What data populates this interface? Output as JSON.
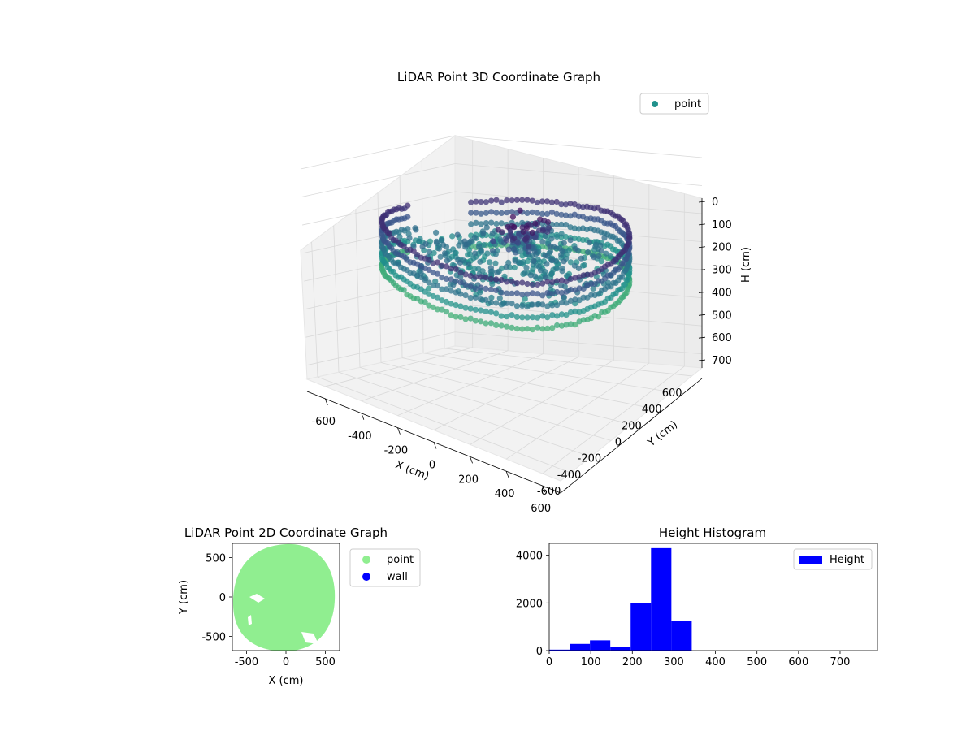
{
  "chart_data": [
    {
      "type": "scatter3d",
      "title": "LiDAR Point 3D Coordinate Graph",
      "xlabel": "X (cm)",
      "ylabel": "Y (cm)",
      "zlabel": "H (cm)",
      "xlim": [
        -700,
        700
      ],
      "ylim": [
        -700,
        700
      ],
      "zlim": [
        750,
        0
      ],
      "xticks": [
        -600,
        -400,
        -200,
        0,
        200,
        400,
        600
      ],
      "yticks": [
        -600,
        -400,
        -200,
        0,
        200,
        400,
        600
      ],
      "zticks": [
        0,
        100,
        200,
        300,
        400,
        500,
        600,
        700
      ],
      "grid": true,
      "legend": {
        "placement": "top-right",
        "entries": [
          "point"
        ]
      },
      "colormap": "viridis",
      "legend_color": "#21918c",
      "series": [
        {
          "name": "point",
          "description": "circular room scan; outer wall ring plus interior returns",
          "wall_radius": 600,
          "wall_height": [
            180,
            340
          ],
          "tall_cluster": {
            "x": [
              -80,
              150
            ],
            "y": [
              -50,
              250
            ],
            "height": [
              150,
              300
            ]
          }
        }
      ]
    },
    {
      "type": "scatter",
      "title": "LiDAR Point 2D Coordinate Graph",
      "xlabel": "X (cm)",
      "ylabel": "Y (cm)",
      "xlim": [
        -680,
        680
      ],
      "ylim": [
        -680,
        680
      ],
      "xticks": [
        -500,
        0,
        500
      ],
      "yticks": [
        -500,
        0,
        500
      ],
      "legend": {
        "placement": "outside-right",
        "entries": [
          "point",
          "wall"
        ]
      },
      "series": [
        {
          "name": "point",
          "color": "#90ee90",
          "shape": "disc",
          "radius": 610
        },
        {
          "name": "wall",
          "color": "#0000ff",
          "values": []
        }
      ]
    },
    {
      "type": "bar",
      "title": "Height Histogram",
      "xlim": [
        0,
        790
      ],
      "ylim": [
        0,
        4500
      ],
      "xticks": [
        0,
        100,
        200,
        300,
        400,
        500,
        600,
        700
      ],
      "yticks": [
        0,
        2000,
        4000
      ],
      "legend": {
        "placement": "top-right",
        "entries": [
          "Height"
        ]
      },
      "color": "#0000ff",
      "bin_edges": [
        0,
        49,
        98,
        147,
        196,
        245,
        294,
        343,
        392,
        441,
        490,
        539,
        588,
        637,
        686,
        735,
        784
      ],
      "values": [
        40,
        280,
        430,
        140,
        2000,
        4300,
        1250,
        0,
        0,
        0,
        0,
        0,
        0,
        0,
        0,
        0
      ]
    }
  ]
}
